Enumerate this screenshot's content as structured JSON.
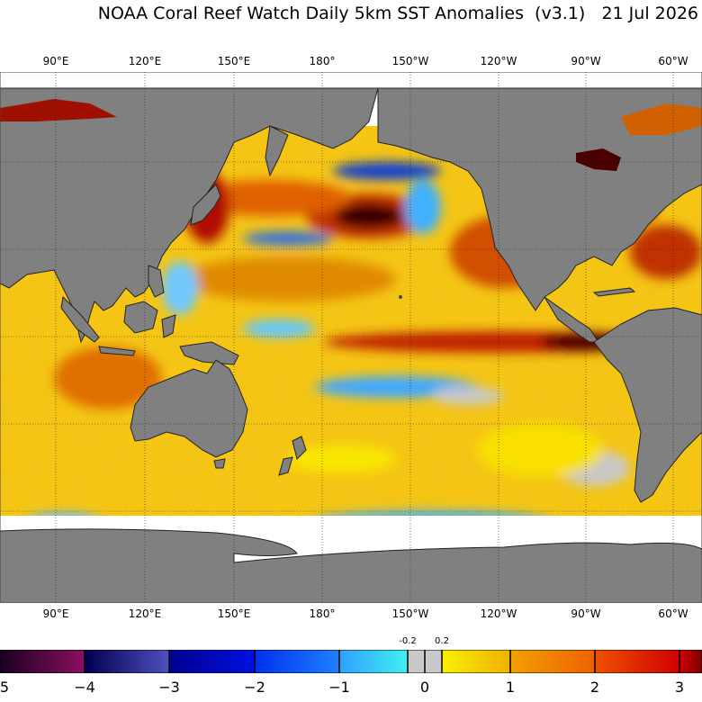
{
  "title": "NOAA Coral Reef Watch Daily 5km SST Anomalies  (v3.1)   21 Jul 2026",
  "top_lon_labels": [
    "90°E",
    "120°E",
    "150°E",
    "180°",
    "150°W",
    "120°W",
    "90°W",
    "60°W"
  ],
  "bottom_lon_labels": [
    "90°E",
    "120°E",
    "150°E",
    "180°",
    "150°W",
    "120°W",
    "90°W",
    "60°W"
  ],
  "colorbar": {
    "tick_labels": [
      "5",
      "−4",
      "−3",
      "−2",
      "−1",
      "0",
      "1",
      "2",
      "3"
    ],
    "small_labels": [
      "-0.2",
      "0.2"
    ],
    "colors": {
      "deep_purple": "#2a0030",
      "purple": "#7a1050",
      "navy": "#0a0a70",
      "blue": "#1030d0",
      "light_blue": "#30a0ff",
      "cyan": "#40e0f0",
      "neutral_gray": "#c8c8c8",
      "yellow": "#f0e000",
      "gold": "#f0b000",
      "orange": "#f07000",
      "red": "#d00000",
      "dark_red": "#6a0000"
    }
  },
  "map_colors": {
    "land": "#808080",
    "ice": "#ffffff",
    "ocean_base": "#f0c020"
  }
}
